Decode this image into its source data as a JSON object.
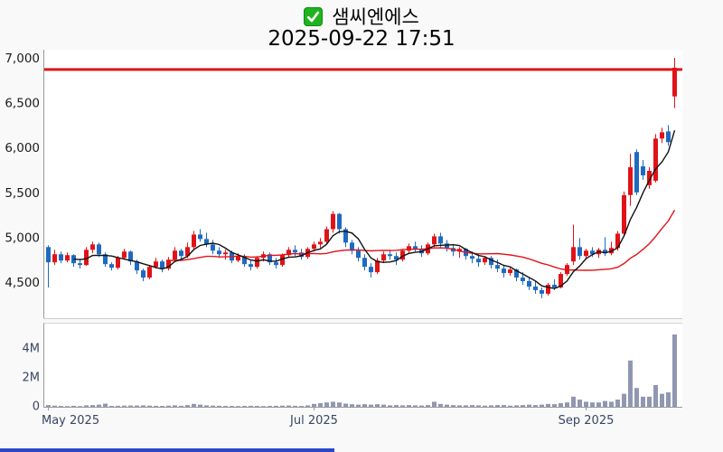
{
  "header": {
    "checkbox_icon": "green-check",
    "title": "샘씨엔에스",
    "timestamp": "2025-09-22 17:51"
  },
  "chart_data": {
    "type": "candlestick_with_volume",
    "symbol_title": "샘씨엔에스",
    "last_updated": "2025-09-22 17:51",
    "price_axis": {
      "values": [
        7000,
        6500,
        6000,
        5500,
        5000,
        4500
      ],
      "labels": [
        "7,000",
        "6,500",
        "6,000",
        "5,500",
        "5,000",
        "4,500"
      ],
      "range": [
        4100,
        7100
      ]
    },
    "volume_axis": {
      "values_m": [
        4,
        2,
        0
      ],
      "labels": [
        "4M",
        "2M",
        "0"
      ],
      "unit": "millions of shares"
    },
    "x_axis": {
      "ticks": [
        {
          "i": 0,
          "label": "May 2025",
          "anchor": "start"
        },
        {
          "i": 42,
          "label": "Jul 2025",
          "anchor": "middle"
        },
        {
          "i": 85,
          "label": "Sep 2025",
          "anchor": "middle"
        }
      ]
    },
    "current_price_line": {
      "value": 6880,
      "color": "#e01318"
    },
    "moving_averages": [
      {
        "name": "MA5",
        "color": "#111111"
      },
      {
        "name": "MA20",
        "color": "#e01318"
      }
    ],
    "colors": {
      "up": "#e01318",
      "down": "#1e6ac1",
      "volume": "#9197b2",
      "checkbox_green": "#1fb41f",
      "progress_blue": "#2b48cb"
    },
    "candles_format": [
      "open",
      "high",
      "low",
      "close",
      "volume_millions"
    ],
    "candles": [
      [
        4900,
        4920,
        4450,
        4730,
        0.12
      ],
      [
        4730,
        4870,
        4700,
        4820,
        0.08
      ],
      [
        4820,
        4850,
        4720,
        4750,
        0.06
      ],
      [
        4750,
        4840,
        4730,
        4810,
        0.05
      ],
      [
        4810,
        4820,
        4680,
        4720,
        0.07
      ],
      [
        4720,
        4770,
        4660,
        4700,
        0.05
      ],
      [
        4700,
        4900,
        4690,
        4870,
        0.1
      ],
      [
        4870,
        4960,
        4830,
        4930,
        0.12
      ],
      [
        4930,
        4950,
        4790,
        4820,
        0.15
      ],
      [
        4820,
        4840,
        4680,
        4710,
        0.22
      ],
      [
        4710,
        4730,
        4640,
        4670,
        0.06
      ],
      [
        4670,
        4800,
        4650,
        4780,
        0.07
      ],
      [
        4780,
        4880,
        4760,
        4850,
        0.08
      ],
      [
        4850,
        4860,
        4700,
        4740,
        0.09
      ],
      [
        4740,
        4760,
        4600,
        4640,
        0.09
      ],
      [
        4640,
        4660,
        4520,
        4560,
        0.1
      ],
      [
        4560,
        4700,
        4540,
        4680,
        0.08
      ],
      [
        4680,
        4780,
        4660,
        4740,
        0.07
      ],
      [
        4740,
        4760,
        4620,
        4660,
        0.06
      ],
      [
        4660,
        4790,
        4640,
        4760,
        0.08
      ],
      [
        4760,
        4900,
        4740,
        4860,
        0.1
      ],
      [
        4860,
        4880,
        4760,
        4800,
        0.07
      ],
      [
        4800,
        4950,
        4780,
        4900,
        0.12
      ],
      [
        4900,
        5080,
        4880,
        5040,
        0.2
      ],
      [
        5040,
        5100,
        4960,
        4990,
        0.15
      ],
      [
        4990,
        5060,
        4900,
        4930,
        0.1
      ],
      [
        4930,
        4980,
        4820,
        4860,
        0.08
      ],
      [
        4860,
        4900,
        4780,
        4820,
        0.07
      ],
      [
        4820,
        4870,
        4760,
        4840,
        0.06
      ],
      [
        4840,
        4860,
        4720,
        4750,
        0.06
      ],
      [
        4750,
        4830,
        4730,
        4800,
        0.05
      ],
      [
        4800,
        4820,
        4680,
        4710,
        0.06
      ],
      [
        4710,
        4760,
        4640,
        4680,
        0.07
      ],
      [
        4680,
        4800,
        4660,
        4780,
        0.06
      ],
      [
        4780,
        4850,
        4740,
        4820,
        0.05
      ],
      [
        4820,
        4840,
        4700,
        4730,
        0.06
      ],
      [
        4730,
        4780,
        4660,
        4700,
        0.07
      ],
      [
        4700,
        4830,
        4680,
        4810,
        0.08
      ],
      [
        4810,
        4900,
        4790,
        4870,
        0.09
      ],
      [
        4870,
        4920,
        4800,
        4840,
        0.07
      ],
      [
        4840,
        4880,
        4760,
        4790,
        0.06
      ],
      [
        4790,
        4900,
        4770,
        4880,
        0.1
      ],
      [
        4880,
        4960,
        4850,
        4930,
        0.2
      ],
      [
        4930,
        5000,
        4890,
        4960,
        0.25
      ],
      [
        4960,
        5130,
        4940,
        5100,
        0.3
      ],
      [
        5100,
        5300,
        5060,
        5270,
        0.35
      ],
      [
        5270,
        5280,
        5050,
        5100,
        0.3
      ],
      [
        5100,
        5120,
        4900,
        4950,
        0.22
      ],
      [
        4950,
        4980,
        4820,
        4860,
        0.18
      ],
      [
        4860,
        4900,
        4740,
        4780,
        0.15
      ],
      [
        4780,
        4820,
        4640,
        4680,
        0.18
      ],
      [
        4680,
        4720,
        4560,
        4620,
        0.15
      ],
      [
        4620,
        4780,
        4600,
        4750,
        0.18
      ],
      [
        4750,
        4850,
        4720,
        4820,
        0.15
      ],
      [
        4820,
        4870,
        4760,
        4800,
        0.1
      ],
      [
        4800,
        4840,
        4700,
        4760,
        0.12
      ],
      [
        4760,
        4880,
        4740,
        4860,
        0.1
      ],
      [
        4860,
        4940,
        4830,
        4910,
        0.12
      ],
      [
        4910,
        4960,
        4850,
        4880,
        0.1
      ],
      [
        4880,
        4920,
        4790,
        4830,
        0.09
      ],
      [
        4830,
        4950,
        4810,
        4930,
        0.12
      ],
      [
        4930,
        5050,
        4900,
        5020,
        0.35
      ],
      [
        5020,
        5060,
        4900,
        4940,
        0.2
      ],
      [
        4940,
        4980,
        4850,
        4890,
        0.15
      ],
      [
        4890,
        4930,
        4800,
        4850,
        0.12
      ],
      [
        4850,
        4900,
        4780,
        4880,
        0.1
      ],
      [
        4880,
        4890,
        4760,
        4800,
        0.1
      ],
      [
        4800,
        4850,
        4720,
        4770,
        0.12
      ],
      [
        4770,
        4820,
        4680,
        4730,
        0.1
      ],
      [
        4730,
        4800,
        4700,
        4780,
        0.08
      ],
      [
        4780,
        4800,
        4660,
        4700,
        0.1
      ],
      [
        4700,
        4760,
        4620,
        4660,
        0.12
      ],
      [
        4660,
        4700,
        4560,
        4610,
        0.12
      ],
      [
        4610,
        4680,
        4580,
        4650,
        0.08
      ],
      [
        4650,
        4660,
        4520,
        4560,
        0.1
      ],
      [
        4560,
        4620,
        4480,
        4520,
        0.12
      ],
      [
        4520,
        4560,
        4420,
        4460,
        0.15
      ],
      [
        4460,
        4520,
        4380,
        4420,
        0.12
      ],
      [
        4420,
        4450,
        4330,
        4380,
        0.15
      ],
      [
        4380,
        4500,
        4360,
        4480,
        0.2
      ],
      [
        4480,
        4540,
        4420,
        4450,
        0.18
      ],
      [
        4450,
        4620,
        4440,
        4600,
        0.25
      ],
      [
        4600,
        4720,
        4580,
        4700,
        0.3
      ],
      [
        4740,
        5150,
        4700,
        4900,
        0.7
      ],
      [
        4900,
        5000,
        4760,
        4800,
        0.5
      ],
      [
        4800,
        4880,
        4760,
        4860,
        0.35
      ],
      [
        4860,
        4900,
        4790,
        4820,
        0.3
      ],
      [
        4820,
        4890,
        4780,
        4870,
        0.3
      ],
      [
        4870,
        5010,
        4800,
        4830,
        0.4
      ],
      [
        4830,
        4960,
        4810,
        4890,
        0.35
      ],
      [
        4890,
        5080,
        4860,
        5050,
        0.5
      ],
      [
        5050,
        5520,
        5020,
        5480,
        0.9
      ],
      [
        5480,
        5940,
        5360,
        5790,
        3.2
      ],
      [
        5960,
        5990,
        5480,
        5510,
        1.3
      ],
      [
        5800,
        5870,
        5650,
        5700,
        0.7
      ],
      [
        5590,
        5790,
        5550,
        5750,
        0.7
      ],
      [
        5640,
        6160,
        5620,
        6110,
        1.5
      ],
      [
        6110,
        6230,
        6060,
        6180,
        0.9
      ],
      [
        6190,
        6260,
        6030,
        6070,
        1.0
      ],
      [
        6580,
        7010,
        6450,
        6900,
        5.0
      ]
    ]
  },
  "footer": {
    "progress_bar": "loading-indicator"
  }
}
